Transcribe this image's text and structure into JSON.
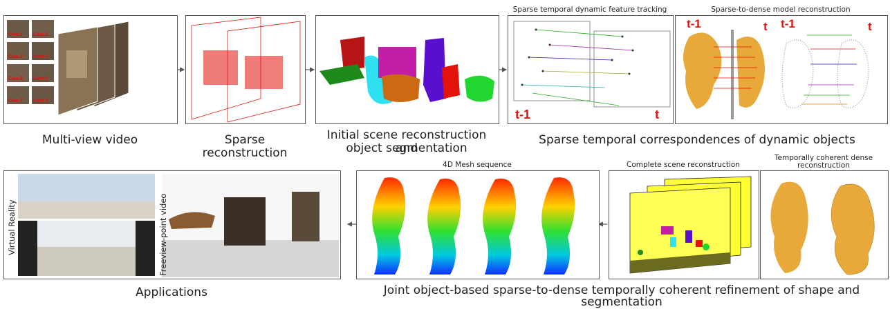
{
  "top_row": {
    "multiview": {
      "caption": "Multi-view video",
      "cam_labels": [
        "Cam 1",
        "Cam 2",
        "Cam 3",
        "Cam 4",
        "Cam 5",
        "Cam 6",
        "Cam 7",
        "Cam 8"
      ]
    },
    "sparse": {
      "caption": "Sparse reconstruction"
    },
    "initial": {
      "caption_line1": "Initial scene reconstruction and",
      "caption_line2": "object segmentation"
    },
    "tracking": {
      "title": "Sparse temporal dynamic feature tracking",
      "label_prev": "t-1",
      "label_cur": "t"
    },
    "model": {
      "title": "Sparse-to-dense model reconstruction",
      "label_prev_a": "t-1",
      "label_cur_a": "t",
      "label_prev_b": "t-1",
      "label_cur_b": "t"
    },
    "group_caption": "Sparse temporal correspondences of dynamic objects"
  },
  "bottom_row": {
    "applications": {
      "caption": "Applications",
      "vr_label": "Virtual Reality",
      "fvv_label": "Freeview-point video"
    },
    "mesh4d": {
      "title": "4D Mesh sequence"
    },
    "complete": {
      "title": "Complete scene reconstruction"
    },
    "coherent": {
      "title_line1": "Temporally coherent dense",
      "title_line2": "reconstruction"
    },
    "group_caption_line1": "Joint object-based sparse-to-dense temporally coherent refinement of shape and",
    "group_caption_line2": "segmentation"
  },
  "colors": {
    "accent_red": "#e3120b",
    "mesh_gold": "#e8a93a",
    "border": "#555555"
  }
}
